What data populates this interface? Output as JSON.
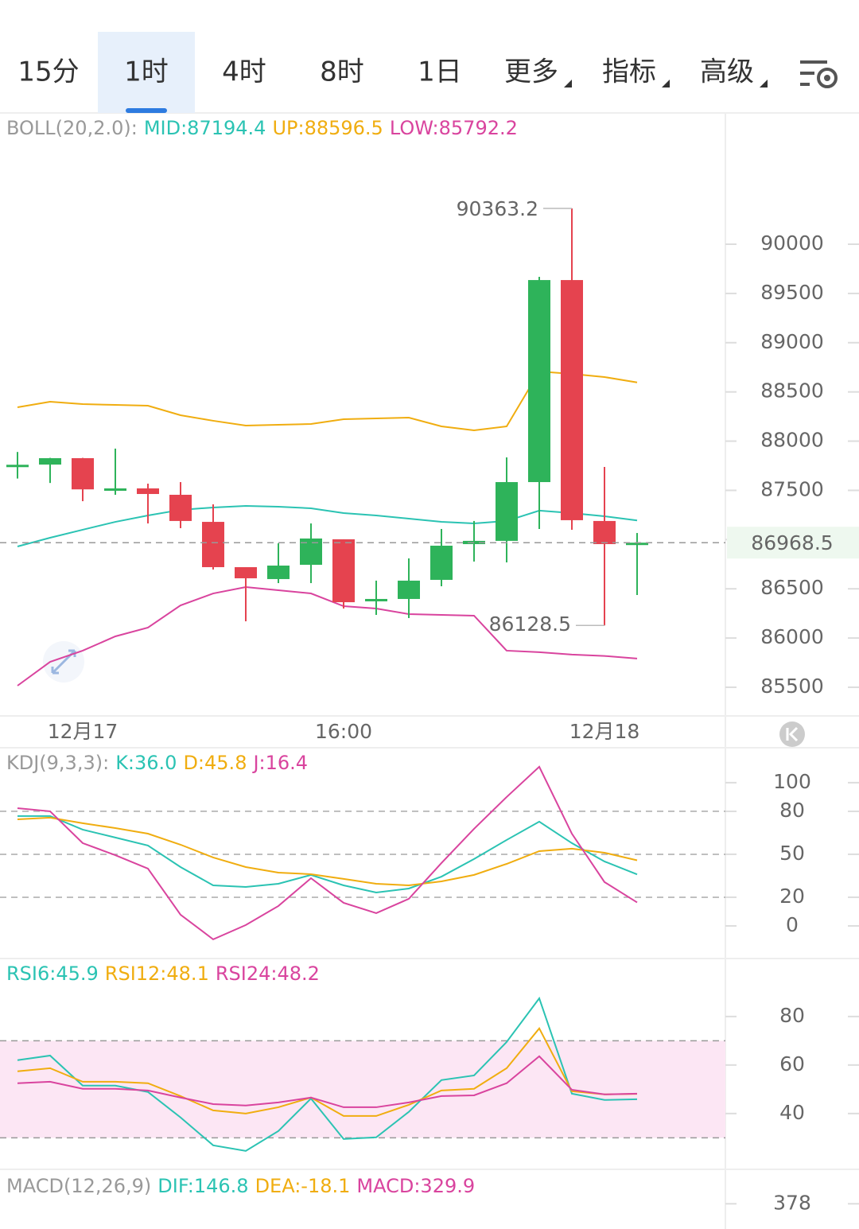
{
  "tabs": [
    "15分",
    "1时",
    "4时",
    "8时",
    "1日",
    "更多",
    "指标",
    "高级"
  ],
  "active_tab": 1,
  "chart_data": [
    {
      "type": "candlestick",
      "header": "BOLL(20,2.0):",
      "categories": [
        null,
        null,
        "12月17",
        null,
        null,
        null,
        null,
        null,
        null,
        null,
        "16:00",
        null,
        null,
        null,
        null,
        null,
        null,
        null,
        "12月18",
        null
      ],
      "open": [
        87750,
        87762,
        87827,
        87510,
        87520,
        87455,
        87180,
        86720,
        86599,
        86744,
        87003,
        86380,
        86397,
        86591,
        86954,
        86987,
        87584,
        89636,
        87189,
        86954
      ],
      "high": [
        87890,
        87830,
        87830,
        87924,
        87568,
        87584,
        87358,
        86720,
        86962,
        87164,
        87003,
        86583,
        86809,
        87108,
        87189,
        87835,
        89669,
        90363.2,
        87738,
        87067
      ],
      "low": [
        87620,
        87575,
        87390,
        87455,
        87164,
        87116,
        86696,
        86170,
        86558,
        86558,
        86300,
        86235,
        86203,
        86526,
        86777,
        86768,
        87108,
        87100,
        86128.5,
        86437
      ],
      "close": [
        87760,
        87827,
        87510,
        87520,
        87463,
        87189,
        86720,
        86607,
        86736,
        87011,
        86364,
        86397,
        86583,
        86938,
        86987,
        87584,
        89636,
        87197,
        86954,
        86968.5
      ],
      "up_color": "#2eb35a",
      "down_color": "#e5434f",
      "series": [
        {
          "name": "MID:87194.4",
          "color": "#2bc3b3",
          "values": [
            86930,
            87019,
            87100,
            87180,
            87245,
            87302,
            87326,
            87342,
            87334,
            87318,
            87269,
            87245,
            87213,
            87180,
            87164,
            87189,
            87294,
            87269,
            87237,
            87194.4
          ]
        },
        {
          "name": "UP:88596.5",
          "color": "#f0ad10",
          "values": [
            88344,
            88400,
            88376,
            88368,
            88360,
            88263,
            88207,
            88158,
            88166,
            88174,
            88223,
            88231,
            88239,
            88150,
            88110,
            88150,
            88707,
            88683,
            88651,
            88596.5
          ]
        },
        {
          "name": "LOW:85792.2",
          "color": "#d9449e",
          "values": [
            85516,
            85758,
            85872,
            86017,
            86106,
            86332,
            86453,
            86518,
            86486,
            86453,
            86324,
            86300,
            86243,
            86235,
            86227,
            85872,
            85856,
            85832,
            85818,
            85792.2
          ]
        }
      ],
      "max_label": "90363.2",
      "min_label": "86128.5",
      "last_label": "86968.5",
      "ylim": [
        85209,
        91309
      ],
      "yticks": [
        85500,
        86000,
        86500,
        87000,
        87500,
        88000,
        88500,
        89000,
        89500,
        90000
      ]
    },
    {
      "type": "line",
      "header": "KDJ(9,3,3):",
      "series": [
        {
          "name": "K:36.0",
          "color": "#2bc3b3",
          "values": [
            76.7,
            76.7,
            67.2,
            61.7,
            56.1,
            41.1,
            28.3,
            27.2,
            29.4,
            35.6,
            28.3,
            23.3,
            26.1,
            34.4,
            46.7,
            60.0,
            72.8,
            57.8,
            45.0,
            36.0
          ]
        },
        {
          "name": "D:45.8",
          "color": "#f0ad10",
          "values": [
            74.4,
            75.6,
            71.7,
            68.3,
            64.4,
            56.7,
            47.8,
            41.1,
            37.2,
            36.1,
            32.8,
            29.4,
            28.3,
            31.1,
            35.6,
            43.3,
            52.2,
            53.9,
            51.1,
            45.8
          ]
        },
        {
          "name": "J:16.4",
          "color": "#d9449e",
          "values": [
            82.2,
            80.0,
            57.8,
            49.4,
            40.0,
            7.8,
            -9.4,
            0.6,
            13.9,
            33.3,
            16.1,
            8.9,
            18.9,
            43.9,
            67.8,
            90.0,
            111.1,
            64.4,
            30.6,
            16.4
          ]
        }
      ],
      "ylim": [
        -22.8,
        124.4
      ],
      "yticks": [
        0,
        20,
        50,
        80,
        100
      ],
      "dashed_levels": [
        20,
        50,
        80
      ]
    },
    {
      "type": "line",
      "series": [
        {
          "name": "RSI6:45.9",
          "color": "#2bc3b3",
          "values": [
            62.0,
            63.9,
            51.5,
            51.5,
            48.9,
            38.4,
            26.9,
            24.6,
            32.8,
            46.2,
            29.5,
            30.2,
            40.7,
            53.8,
            55.7,
            69.5,
            87.5,
            48.2,
            45.6,
            45.9
          ]
        },
        {
          "name": "RSI12:48.1",
          "color": "#f0ad10",
          "values": [
            57.4,
            58.7,
            53.1,
            53.1,
            52.5,
            47.2,
            41.3,
            40.0,
            42.6,
            46.6,
            39.0,
            39.0,
            43.6,
            49.5,
            50.2,
            58.7,
            75.1,
            49.2,
            47.9,
            48.1
          ]
        },
        {
          "name": "RSI24:48.2",
          "color": "#d9449e",
          "values": [
            52.5,
            53.1,
            50.2,
            50.2,
            49.5,
            46.6,
            43.9,
            43.3,
            44.6,
            46.6,
            42.6,
            42.6,
            44.6,
            47.2,
            47.5,
            52.5,
            63.6,
            49.8,
            47.9,
            48.2
          ]
        }
      ],
      "ylim": [
        17.0,
        103.9
      ],
      "yticks": [
        40,
        60,
        80
      ],
      "band": [
        30,
        70
      ],
      "band_color": "#fce6f4"
    },
    {
      "type": "macd",
      "header": "MACD(12,26,9)",
      "series": [
        {
          "name": "DIF:146.8",
          "color": "#2bc3b3"
        },
        {
          "name": "DEA:-18.1",
          "color": "#f0ad10"
        },
        {
          "name": "MACD:329.9",
          "color": "#d9449e"
        }
      ],
      "ylim": [
        -382,
        520
      ],
      "yticks": [
        378
      ]
    }
  ]
}
